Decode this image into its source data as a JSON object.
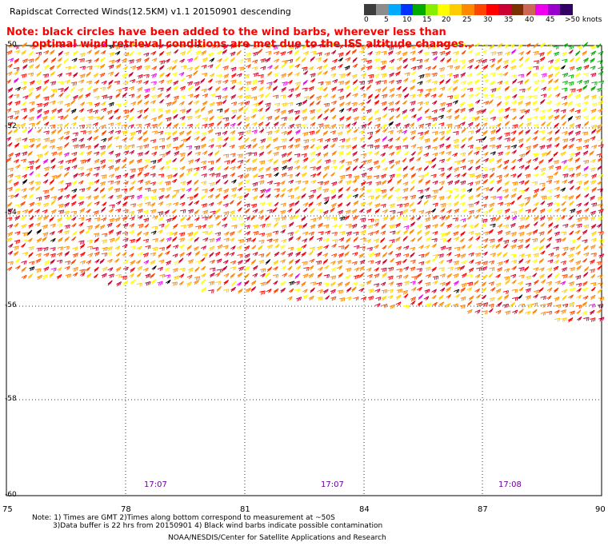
{
  "header": {
    "title": "Rapidscat Corrected Winds(12.5KM) v1.1 20150901 descending",
    "note_line1": "Note: black circles have been added to the wind barbs, wherever less than",
    "note_line2": "optimal wind retrieval conditions are met due to the ISS altitude changes."
  },
  "legend": {
    "units": "knots",
    "colors": [
      "#3c3c3c",
      "#8c8c8c",
      "#00aaff",
      "#0033ff",
      "#00aa00",
      "#88ee00",
      "#ffff00",
      "#ffcc00",
      "#ff8800",
      "#ff4400",
      "#ff0000",
      "#cc0033",
      "#7a3000",
      "#cc6655",
      "#ee00ee",
      "#9900cc",
      "#330066"
    ],
    "labels": [
      "0",
      "5",
      "10",
      "15",
      "20",
      "25",
      "30",
      "35",
      "40",
      "45",
      ">50 knots"
    ]
  },
  "map": {
    "lat_labels": [
      "-50",
      "-52",
      "-54",
      "-56",
      "-58",
      "-60"
    ],
    "lon_labels": [
      "75",
      "78",
      "81",
      "84",
      "87",
      "90"
    ],
    "time_labels": [
      "17:07",
      "17:07",
      "17:08"
    ]
  },
  "footer": {
    "note1": "Note: 1) Times are GMT 2)Times along bottom correspond to measurement at ~50S",
    "note2": "3)Data buffer is 22 hrs from 20150901 4) Black wind barbs indicate possible contamination",
    "credit": "NOAA/NESDIS/Center for Satellite Applications and Research"
  }
}
